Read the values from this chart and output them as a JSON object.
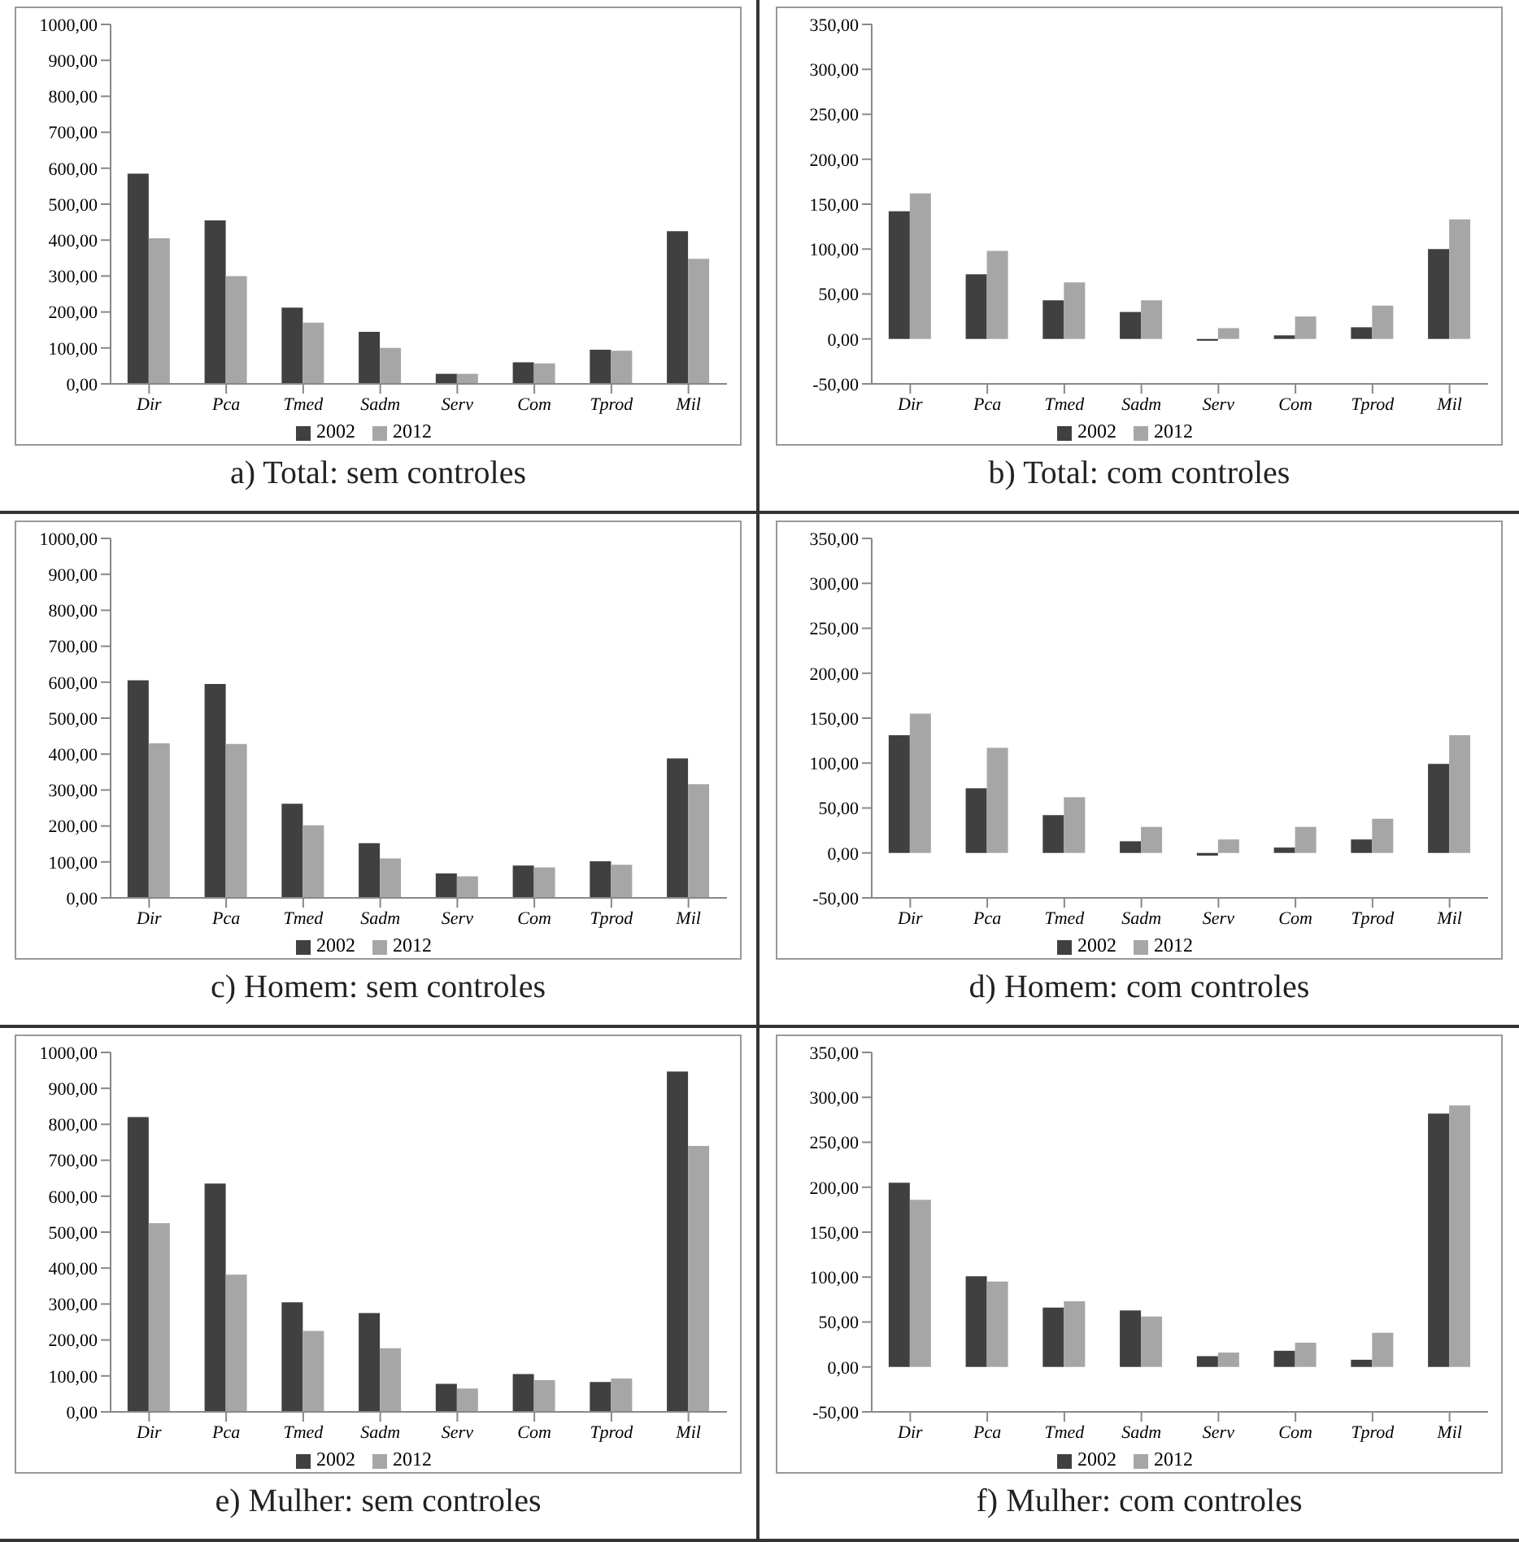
{
  "chart_data": [
    {
      "type": "bar",
      "title": "a) Total: sem controles",
      "categories": [
        "Dir",
        "Pca",
        "Tmed",
        "Sadm",
        "Serv",
        "Com",
        "Tprod",
        "Mil"
      ],
      "series": [
        {
          "name": "2002",
          "color": "#404040",
          "values": [
            585,
            455,
            212,
            145,
            28,
            60,
            95,
            425
          ]
        },
        {
          "name": "2012",
          "color": "#a6a6a6",
          "values": [
            405,
            300,
            170,
            100,
            28,
            57,
            92,
            348
          ]
        }
      ],
      "ylim": [
        0,
        1000
      ],
      "yticks": [
        {
          "value": 0,
          "label": "0,00"
        },
        {
          "value": 100,
          "label": "100,00"
        },
        {
          "value": 200,
          "label": "200,00"
        },
        {
          "value": 300,
          "label": "300,00"
        },
        {
          "value": 400,
          "label": "400,00"
        },
        {
          "value": 500,
          "label": "500,00"
        },
        {
          "value": 600,
          "label": "600,00"
        },
        {
          "value": 700,
          "label": "700,00"
        },
        {
          "value": 800,
          "label": "800,00"
        },
        {
          "value": 900,
          "label": "900,00"
        },
        {
          "value": 1000,
          "label": "1000,00"
        }
      ],
      "grid": false,
      "legend": "bottom"
    },
    {
      "type": "bar",
      "title": "b) Total: com controles",
      "categories": [
        "Dir",
        "Pca",
        "Tmed",
        "Sadm",
        "Serv",
        "Com",
        "Tprod",
        "Mil"
      ],
      "series": [
        {
          "name": "2002",
          "color": "#404040",
          "values": [
            142,
            72,
            43,
            30,
            -2,
            4,
            13,
            100
          ]
        },
        {
          "name": "2012",
          "color": "#a6a6a6",
          "values": [
            162,
            98,
            63,
            43,
            12,
            25,
            37,
            133
          ]
        }
      ],
      "ylim": [
        -50,
        350
      ],
      "yticks": [
        {
          "value": -50,
          "label": "-50,00"
        },
        {
          "value": 0,
          "label": "0,00"
        },
        {
          "value": 50,
          "label": "50,00"
        },
        {
          "value": 100,
          "label": "100,00"
        },
        {
          "value": 150,
          "label": "150,00"
        },
        {
          "value": 200,
          "label": "200,00"
        },
        {
          "value": 250,
          "label": "250,00"
        },
        {
          "value": 300,
          "label": "300,00"
        },
        {
          "value": 350,
          "label": "350,00"
        }
      ],
      "grid": false,
      "legend": "bottom"
    },
    {
      "type": "bar",
      "title": "c) Homem: sem controles",
      "categories": [
        "Dir",
        "Pca",
        "Tmed",
        "Sadm",
        "Serv",
        "Com",
        "Tprod",
        "Mil"
      ],
      "series": [
        {
          "name": "2002",
          "color": "#404040",
          "values": [
            605,
            595,
            262,
            152,
            68,
            90,
            102,
            388
          ]
        },
        {
          "name": "2012",
          "color": "#a6a6a6",
          "values": [
            430,
            428,
            202,
            110,
            60,
            85,
            92,
            316
          ]
        }
      ],
      "ylim": [
        0,
        1000
      ],
      "yticks": [
        {
          "value": 0,
          "label": "0,00"
        },
        {
          "value": 100,
          "label": "100,00"
        },
        {
          "value": 200,
          "label": "200,00"
        },
        {
          "value": 300,
          "label": "300,00"
        },
        {
          "value": 400,
          "label": "400,00"
        },
        {
          "value": 500,
          "label": "500,00"
        },
        {
          "value": 600,
          "label": "600,00"
        },
        {
          "value": 700,
          "label": "700,00"
        },
        {
          "value": 800,
          "label": "800,00"
        },
        {
          "value": 900,
          "label": "900,00"
        },
        {
          "value": 1000,
          "label": "1000,00"
        }
      ],
      "grid": false,
      "legend": "bottom"
    },
    {
      "type": "bar",
      "title": "d) Homem: com controles",
      "categories": [
        "Dir",
        "Pca",
        "Tmed",
        "Sadm",
        "Serv",
        "Com",
        "Tprod",
        "Mil"
      ],
      "series": [
        {
          "name": "2002",
          "color": "#404040",
          "values": [
            131,
            72,
            42,
            13,
            -3,
            6,
            15,
            99
          ]
        },
        {
          "name": "2012",
          "color": "#a6a6a6",
          "values": [
            155,
            117,
            62,
            29,
            15,
            29,
            38,
            131
          ]
        }
      ],
      "ylim": [
        -50,
        350
      ],
      "yticks": [
        {
          "value": -50,
          "label": "-50,00"
        },
        {
          "value": 0,
          "label": "0,00"
        },
        {
          "value": 50,
          "label": "50,00"
        },
        {
          "value": 100,
          "label": "100,00"
        },
        {
          "value": 150,
          "label": "150,00"
        },
        {
          "value": 200,
          "label": "200,00"
        },
        {
          "value": 250,
          "label": "250,00"
        },
        {
          "value": 300,
          "label": "300,00"
        },
        {
          "value": 350,
          "label": "350,00"
        }
      ],
      "grid": false,
      "legend": "bottom"
    },
    {
      "type": "bar",
      "title": "e) Mulher: sem controles",
      "categories": [
        "Dir",
        "Pca",
        "Tmed",
        "Sadm",
        "Serv",
        "Com",
        "Tprod",
        "Mil"
      ],
      "series": [
        {
          "name": "2002",
          "color": "#404040",
          "values": [
            820,
            635,
            305,
            275,
            78,
            105,
            83,
            947
          ]
        },
        {
          "name": "2012",
          "color": "#a6a6a6",
          "values": [
            525,
            382,
            225,
            177,
            65,
            88,
            93,
            740
          ]
        }
      ],
      "ylim": [
        0,
        1000
      ],
      "yticks": [
        {
          "value": 0,
          "label": "0,00"
        },
        {
          "value": 100,
          "label": "100,00"
        },
        {
          "value": 200,
          "label": "200,00"
        },
        {
          "value": 300,
          "label": "300,00"
        },
        {
          "value": 400,
          "label": "400,00"
        },
        {
          "value": 500,
          "label": "500,00"
        },
        {
          "value": 600,
          "label": "600,00"
        },
        {
          "value": 700,
          "label": "700,00"
        },
        {
          "value": 800,
          "label": "800,00"
        },
        {
          "value": 900,
          "label": "900,00"
        },
        {
          "value": 1000,
          "label": "1000,00"
        }
      ],
      "grid": false,
      "legend": "bottom"
    },
    {
      "type": "bar",
      "title": "f) Mulher: com controles",
      "categories": [
        "Dir",
        "Pca",
        "Tmed",
        "Sadm",
        "Serv",
        "Com",
        "Tprod",
        "Mil"
      ],
      "series": [
        {
          "name": "2002",
          "color": "#404040",
          "values": [
            205,
            101,
            66,
            63,
            12,
            18,
            8,
            282
          ]
        },
        {
          "name": "2012",
          "color": "#a6a6a6",
          "values": [
            186,
            95,
            73,
            56,
            16,
            27,
            38,
            291
          ]
        }
      ],
      "ylim": [
        -50,
        350
      ],
      "yticks": [
        {
          "value": -50,
          "label": "-50,00"
        },
        {
          "value": 0,
          "label": "0,00"
        },
        {
          "value": 50,
          "label": "50,00"
        },
        {
          "value": 100,
          "label": "100,00"
        },
        {
          "value": 150,
          "label": "150,00"
        },
        {
          "value": 200,
          "label": "200,00"
        },
        {
          "value": 250,
          "label": "250,00"
        },
        {
          "value": 300,
          "label": "300,00"
        },
        {
          "value": 350,
          "label": "350,00"
        }
      ],
      "grid": false,
      "legend": "bottom"
    }
  ]
}
